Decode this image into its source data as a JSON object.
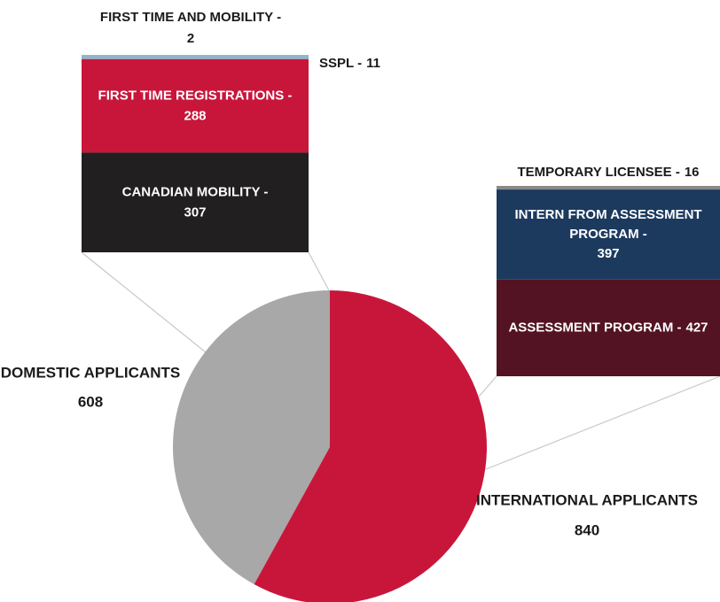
{
  "chart_data": {
    "type": "pie",
    "categories": [
      "DOMESTIC APPLICANTS",
      "INTERNATIONAL APPLICANTS"
    ],
    "values": [
      608,
      840
    ],
    "colors": [
      "#a8a8a8",
      "#c8163b"
    ],
    "breakdowns": [
      {
        "categories": [
          "FIRST TIME AND MOBILITY -",
          "SSPL -",
          "FIRST TIME REGISTRATIONS -",
          "CANADIAN MOBILITY -"
        ],
        "values": [
          2,
          11,
          288,
          307
        ],
        "colors": [
          "#3fc1dd",
          "#8fb6cc",
          "#c8163b",
          "#221f20"
        ]
      },
      {
        "categories": [
          "TEMPORARY LICENSEE -",
          "INTERN FROM ASSESSMENT PROGRAM -",
          "ASSESSMENT PROGRAM -"
        ],
        "values": [
          16,
          397,
          427
        ],
        "colors": [
          "#8a8a8a",
          "#1c3a5e",
          "#531322"
        ]
      }
    ]
  }
}
